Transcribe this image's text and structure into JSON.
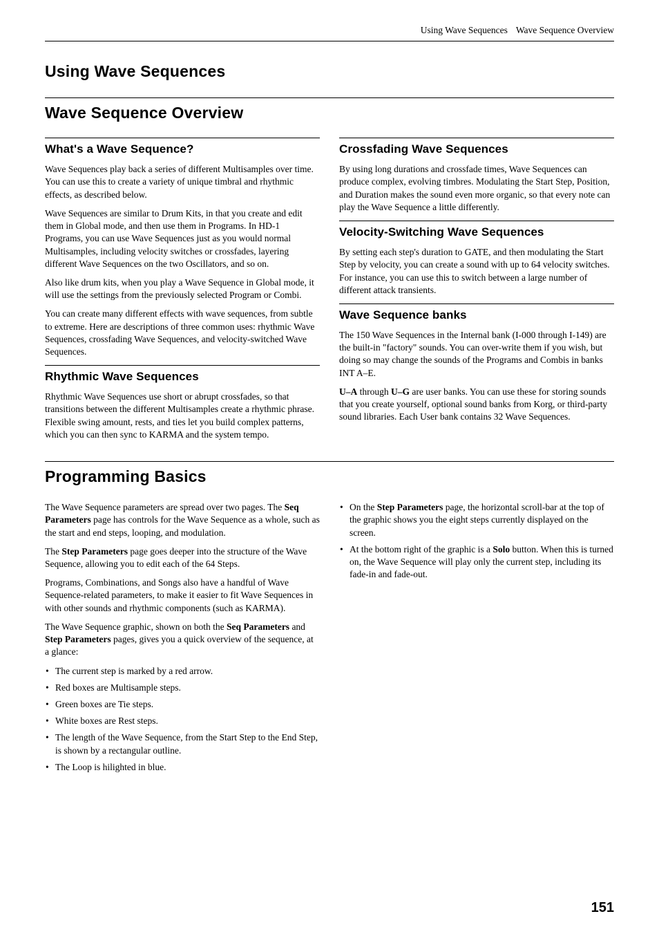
{
  "runningHead": {
    "left": "Using Wave Sequences",
    "right": "Wave Sequence Overview"
  },
  "chapterTitle": "Using Wave Sequences",
  "overview": {
    "title": "Wave Sequence Overview",
    "left": {
      "h1": "What's a Wave Sequence?",
      "p1": "Wave Sequences play back a series of different Multisamples over time. You can use this to create a variety of unique timbral and rhythmic effects, as described below.",
      "p2": "Wave Sequences are similar to Drum Kits, in that you create and edit them in Global mode, and then use them in Programs. In HD-1 Programs, you can use Wave Sequences just as you would normal Multisamples, including velocity switches or crossfades, layering different Wave Sequences on the two Oscillators, and so on.",
      "p3": "Also like drum kits, when you play a Wave Sequence in Global mode, it will use the settings from the previously selected Program or Combi.",
      "p4": "You can create many different effects with wave sequences, from subtle to extreme. Here are descriptions of three common uses: rhythmic Wave Sequences, crossfading Wave Sequences, and velocity-switched Wave Sequences.",
      "h2": "Rhythmic Wave Sequences",
      "p5": "Rhythmic Wave Sequences use short or abrupt crossfades, so that transitions between the different Multisamples create a rhythmic phrase. Flexible swing amount, rests, and ties let you build complex patterns, which you can then sync to KARMA and the system tempo."
    },
    "right": {
      "h1": "Crossfading Wave Sequences",
      "p1": "By using long durations and crossfade times, Wave Sequences can produce complex, evolving timbres. Modulating the Start Step, Position, and Duration makes the sound even more organic, so that every note can play the Wave Sequence a little differently.",
      "h2": "Velocity-Switching Wave Sequences",
      "p2": "By setting each step's duration to GATE, and then modulating the Start Step by velocity, you can create a sound with up to 64 velocity switches. For instance, you can use this to switch between a large number of different attack transients.",
      "h3": "Wave Sequence banks",
      "p3": "The 150 Wave Sequences in the Internal bank (I-000 through I-149) are the built-in \"factory\" sounds. You can over-write them if you wish, but doing so may change the sounds of the Programs and Combis in banks INT A–E.",
      "p4a": "U–A",
      "p4b": " through ",
      "p4c": "U–G",
      "p4d": " are user banks. You can use these for storing sounds that you create yourself, optional sound banks from Korg, or third-party sound libraries. Each User bank contains 32 Wave Sequences."
    }
  },
  "prog": {
    "title": "Programming Basics",
    "left": {
      "p1a": "The Wave Sequence parameters are spread over two pages. The ",
      "p1b": "Seq Parameters",
      "p1c": " page has controls for the Wave Sequence as a whole, such as the start and end steps, looping, and modulation.",
      "p2a": "The ",
      "p2b": "Step Parameters",
      "p2c": " page goes deeper into the structure of the Wave Sequence, allowing you to edit each of the 64 Steps.",
      "p3": "Programs, Combinations, and Songs also have a handful of Wave Sequence-related parameters, to make it easier to fit Wave Sequences in with other sounds and rhythmic components (such as KARMA).",
      "p4a": "The Wave Sequence graphic, shown on both the ",
      "p4b": "Seq Parameters",
      "p4c": " and ",
      "p4d": "Step Parameters",
      "p4e": " pages, gives you a quick overview of the sequence, at a glance:",
      "li1": "The current step is marked by a red arrow.",
      "li2": "Red boxes are Multisample steps.",
      "li3": "Green boxes are Tie steps.",
      "li4": "White boxes are Rest steps.",
      "li5": "The length of the Wave Sequence, from the Start Step to the End Step, is shown by a rectangular outline.",
      "li6": "The Loop is hilighted in blue."
    },
    "right": {
      "li1a": "On the ",
      "li1b": "Step Parameters",
      "li1c": " page, the horizontal scroll-bar at the top of the graphic shows you the eight steps currently displayed on the screen.",
      "li2a": "At the bottom right of the graphic is a ",
      "li2b": "Solo",
      "li2c": " button. When this is turned on, the Wave Sequence will play only the current step, including its fade-in and fade-out."
    }
  },
  "pageNumber": "151"
}
